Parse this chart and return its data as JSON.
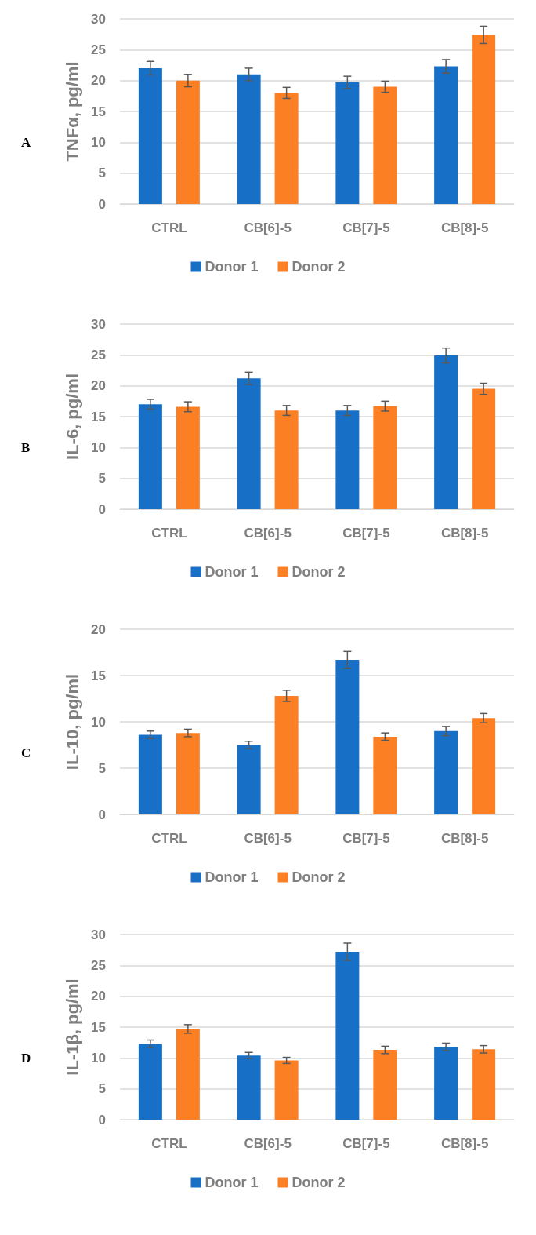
{
  "chart_data": [
    {
      "type": "bar",
      "title": "A",
      "ylabel": "TNFα, pg/ml",
      "categories": [
        "CTRL",
        "CB[6]-5",
        "CB[7]-5",
        "CB[8]-5"
      ],
      "ylim": [
        0,
        30
      ],
      "yticks": [
        0,
        5,
        10,
        15,
        20,
        25,
        30
      ],
      "grid": "y",
      "legend": "bottom",
      "series": [
        {
          "name": "Donor 1",
          "color": "#1870c6",
          "values": [
            22,
            21,
            19.7,
            22.3
          ],
          "errors": [
            1.1,
            1,
            1,
            1.1
          ]
        },
        {
          "name": "Donor 2",
          "color": "#fd7f23",
          "values": [
            20,
            18,
            19,
            27.4
          ],
          "errors": [
            1,
            0.9,
            0.9,
            1.4
          ]
        }
      ]
    },
    {
      "type": "bar",
      "title": "B",
      "ylabel": "IL-6, pg/ml",
      "categories": [
        "CTRL",
        "CB[6]-5",
        "CB[7]-5",
        "CB[8]-5"
      ],
      "ylim": [
        0,
        30
      ],
      "yticks": [
        0,
        5,
        10,
        15,
        20,
        25,
        30
      ],
      "grid": "y",
      "legend": "bottom",
      "series": [
        {
          "name": "Donor 1",
          "color": "#1870c6",
          "values": [
            17,
            21.2,
            16,
            24.9
          ],
          "errors": [
            0.8,
            1,
            0.8,
            1.2
          ]
        },
        {
          "name": "Donor 2",
          "color": "#fd7f23",
          "values": [
            16.6,
            16,
            16.7,
            19.5
          ],
          "errors": [
            0.8,
            0.8,
            0.8,
            0.9
          ]
        }
      ]
    },
    {
      "type": "bar",
      "title": "C",
      "ylabel": "IL-10, pg/ml",
      "categories": [
        "CTRL",
        "CB[6]-5",
        "CB[7]-5",
        "CB[8]-5"
      ],
      "ylim": [
        0,
        20
      ],
      "yticks": [
        0,
        5,
        10,
        15,
        20
      ],
      "grid": "y",
      "legend": "bottom",
      "series": [
        {
          "name": "Donor 1",
          "color": "#1870c6",
          "values": [
            8.6,
            7.5,
            16.7,
            9.0
          ],
          "errors": [
            0.4,
            0.4,
            0.9,
            0.5
          ]
        },
        {
          "name": "Donor 2",
          "color": "#fd7f23",
          "values": [
            8.8,
            12.8,
            8.4,
            10.4
          ],
          "errors": [
            0.4,
            0.6,
            0.4,
            0.5
          ]
        }
      ]
    },
    {
      "type": "bar",
      "title": "D",
      "ylabel": "IL-1β, pg/ml",
      "categories": [
        "CTRL",
        "CB[6]-5",
        "CB[7]-5",
        "CB[8]-5"
      ],
      "ylim": [
        0,
        30
      ],
      "yticks": [
        0,
        5,
        10,
        15,
        20,
        25,
        30
      ],
      "grid": "y",
      "legend": "bottom",
      "series": [
        {
          "name": "Donor 1",
          "color": "#1870c6",
          "values": [
            12.3,
            10.4,
            27.2,
            11.8
          ],
          "errors": [
            0.6,
            0.5,
            1.4,
            0.6
          ]
        },
        {
          "name": "Donor 2",
          "color": "#fd7f23",
          "values": [
            14.7,
            9.6,
            11.3,
            11.4
          ],
          "errors": [
            0.7,
            0.5,
            0.6,
            0.6
          ]
        }
      ]
    }
  ]
}
